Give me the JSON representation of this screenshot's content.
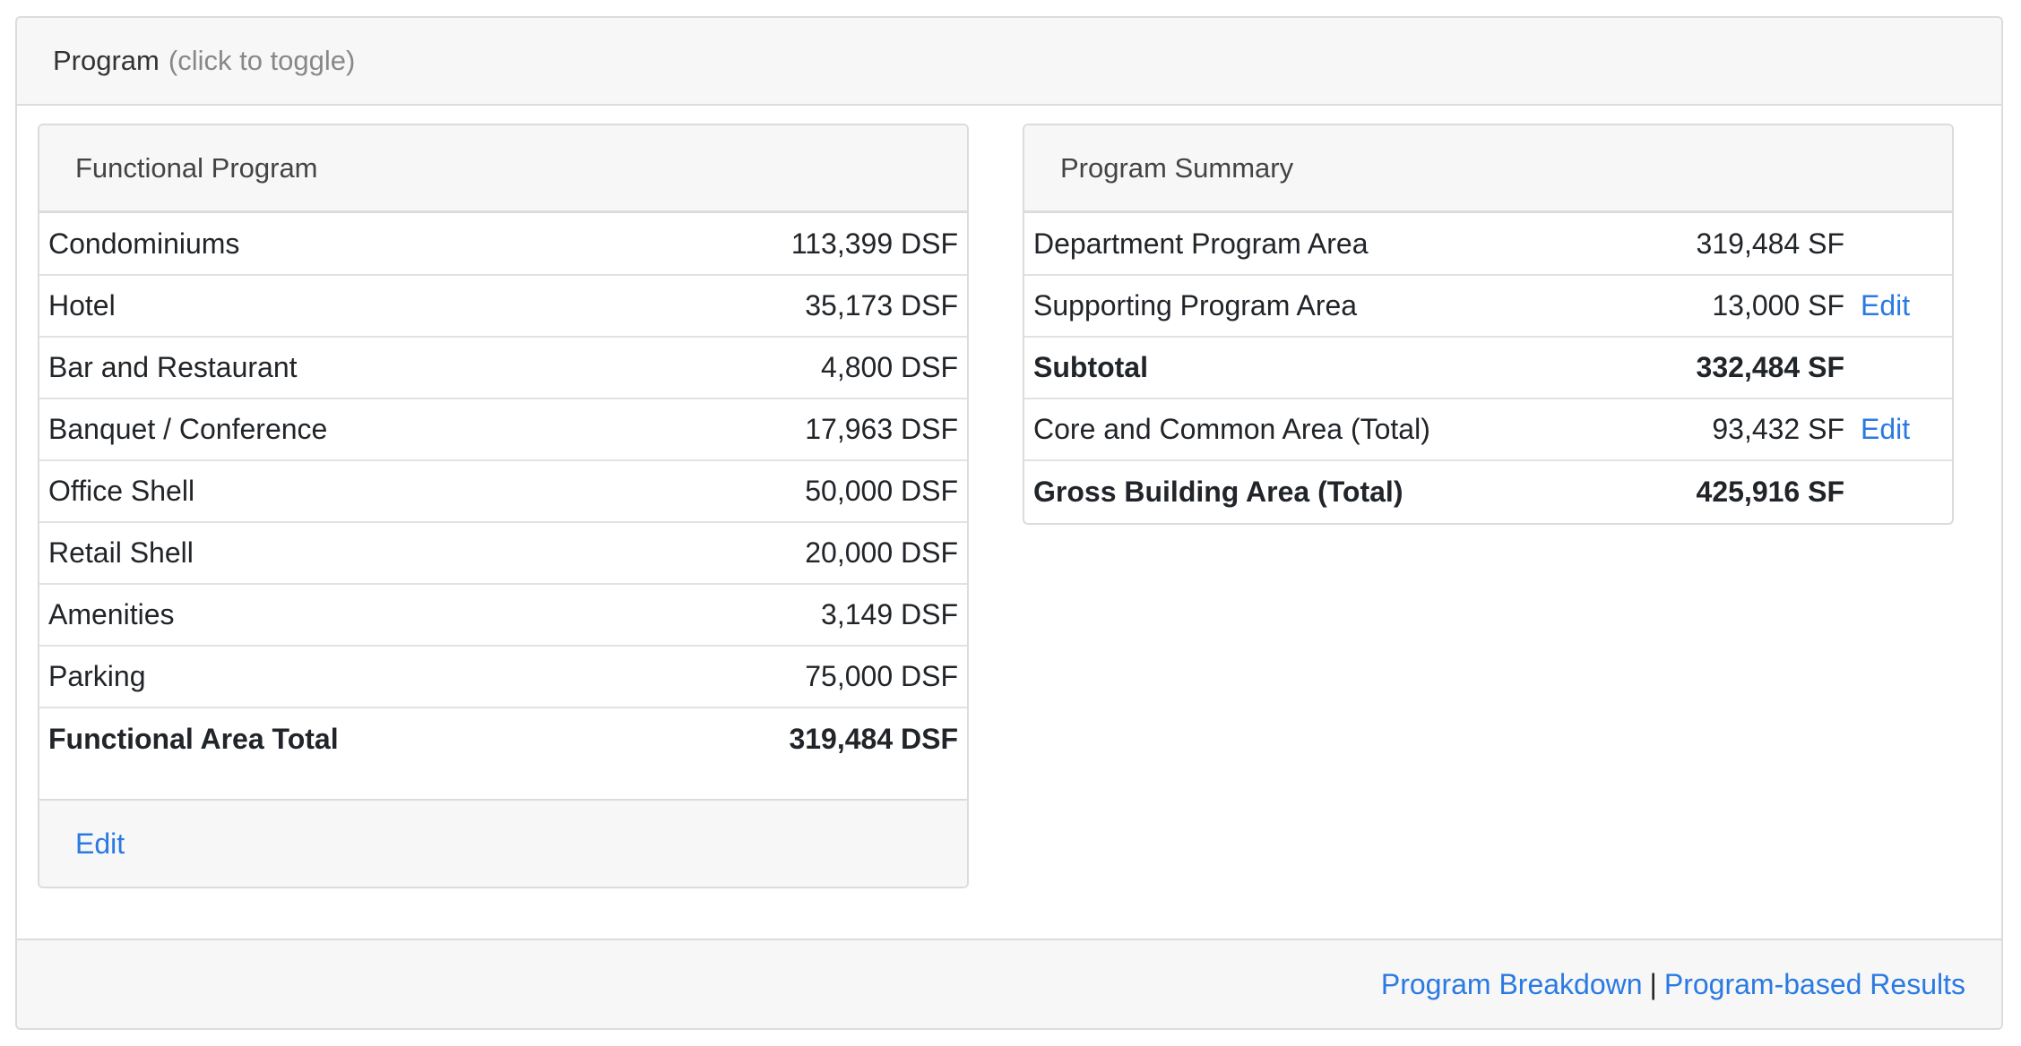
{
  "panel": {
    "title": "Program",
    "hint": "(click to toggle)"
  },
  "functional_program": {
    "title": "Functional Program",
    "rows": [
      {
        "label": "Condominiums",
        "value": "113,399 DSF"
      },
      {
        "label": "Hotel",
        "value": "35,173 DSF"
      },
      {
        "label": "Bar and Restaurant",
        "value": "4,800 DSF"
      },
      {
        "label": "Banquet / Conference",
        "value": "17,963 DSF"
      },
      {
        "label": "Office Shell",
        "value": "50,000 DSF"
      },
      {
        "label": "Retail Shell",
        "value": "20,000 DSF"
      },
      {
        "label": "Amenities",
        "value": "3,149 DSF"
      },
      {
        "label": "Parking",
        "value": "75,000 DSF"
      }
    ],
    "total": {
      "label": "Functional Area Total",
      "value": "319,484 DSF"
    },
    "edit_label": "Edit"
  },
  "program_summary": {
    "title": "Program Summary",
    "rows": [
      {
        "label": "Department Program Area",
        "value": "319,484 SF",
        "edit": ""
      },
      {
        "label": "Supporting Program Area",
        "value": "13,000 SF",
        "edit": "Edit"
      },
      {
        "label": "Subtotal",
        "value": "332,484 SF",
        "edit": ""
      },
      {
        "label": "Core and Common Area (Total)",
        "value": "93,432 SF",
        "edit": "Edit"
      },
      {
        "label": "Gross Building Area (Total)",
        "value": "425,916 SF",
        "edit": ""
      }
    ]
  },
  "footer": {
    "link1": "Program Breakdown",
    "separator": "|",
    "link2": "Program-based Results"
  },
  "colors": {
    "link": "#2a7ae2",
    "header_bg": "#f7f7f7",
    "border": "#dcdcdc"
  }
}
